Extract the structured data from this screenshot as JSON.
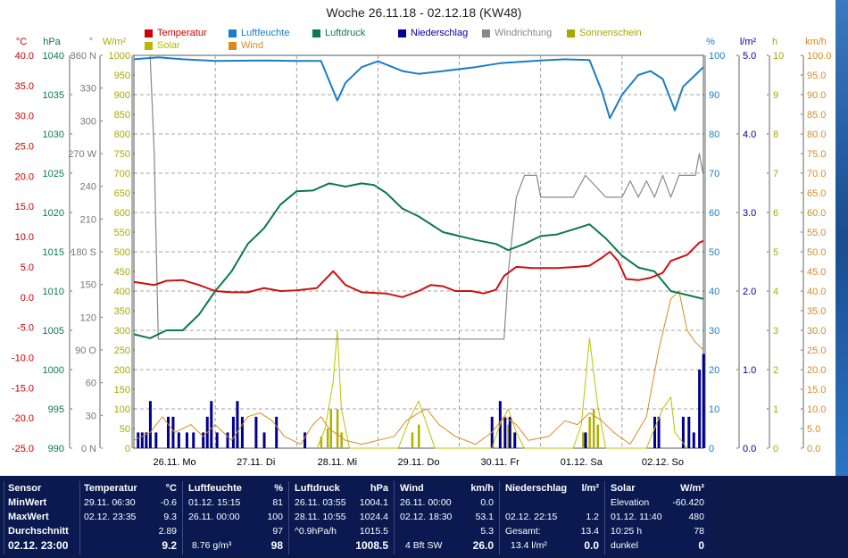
{
  "title": "Woche 26.11.18 - 02.12.18 (KW48)",
  "legend": [
    {
      "label": "Temperatur",
      "color": "#cc0000"
    },
    {
      "label": "Luftfeuchte",
      "color": "#1a7ec4"
    },
    {
      "label": "Luftdruck",
      "color": "#0a7a4a"
    },
    {
      "label": "Niederschlag",
      "color": "#000099"
    },
    {
      "label": "Windrichtung",
      "color": "#888888"
    },
    {
      "label": "Sonnenschein",
      "color": "#a8a800"
    },
    {
      "label": "Solar",
      "color": "#b8b800"
    },
    {
      "label": "Wind",
      "color": "#d88a20"
    }
  ],
  "axis_units": {
    "temp": "°C",
    "hpa": "hPa",
    "dir": "°",
    "solar": "W/m²",
    "hum": "%",
    "rain": "l/m²",
    "sun": "h",
    "wind": "km/h"
  },
  "axis_ticks": {
    "temp": [
      "40.0",
      "35.0",
      "30.0",
      "25.0",
      "20.0",
      "15.0",
      "10.0",
      "5.0",
      "0.0",
      "-5.0",
      "-10.0",
      "-15.0",
      "-20.0",
      "-25.0"
    ],
    "hpa": [
      "1040",
      "1035",
      "1030",
      "1025",
      "1020",
      "1015",
      "1010",
      "1005",
      "1000",
      "995",
      "990"
    ],
    "dir": [
      "360 N",
      "330",
      "300",
      "270 W",
      "240",
      "210",
      "180 S",
      "150",
      "120",
      "90 O",
      "60",
      "30",
      "0 N"
    ],
    "solar": [
      "1000",
      "950",
      "900",
      "850",
      "800",
      "750",
      "700",
      "650",
      "600",
      "550",
      "500",
      "450",
      "400",
      "350",
      "300",
      "250",
      "200",
      "150",
      "100",
      "50",
      "0"
    ],
    "hum": [
      "100",
      "90",
      "80",
      "70",
      "60",
      "50",
      "40",
      "30",
      "20",
      "10",
      "0"
    ],
    "rain": [
      "5.0",
      "4.0",
      "3.0",
      "2.0",
      "1.0",
      "0.0"
    ],
    "sun": [
      "10",
      "9",
      "8",
      "7",
      "6",
      "5",
      "4",
      "3",
      "2",
      "1",
      "0"
    ],
    "wind": [
      "100.0",
      "95.0",
      "90.0",
      "85.0",
      "80.0",
      "75.0",
      "70.0",
      "65.0",
      "60.0",
      "55.0",
      "50.0",
      "45.0",
      "40.0",
      "35.0",
      "30.0",
      "25.0",
      "20.0",
      "15.0",
      "10.0",
      "5.0",
      "0.0"
    ]
  },
  "chart_data": {
    "type": "line",
    "title": "Woche 26.11.18 - 02.12.18 (KW48)",
    "x_day_labels": [
      "26.11. Mo",
      "27.11. Di",
      "28.11. Mi",
      "29.11. Do",
      "30.11. Fr",
      "01.12. Sa",
      "02.12. So"
    ],
    "x_range_days": [
      0,
      7
    ],
    "series": [
      {
        "name": "Temperatur",
        "axis": "temp",
        "ylim": [
          -25,
          40
        ],
        "points": [
          [
            0,
            2.5
          ],
          [
            0.25,
            2
          ],
          [
            0.4,
            2.7
          ],
          [
            0.6,
            2.8
          ],
          [
            0.8,
            2
          ],
          [
            1,
            1
          ],
          [
            1.2,
            0.8
          ],
          [
            1.4,
            0.8
          ],
          [
            1.6,
            1.5
          ],
          [
            1.8,
            1
          ],
          [
            2,
            1.1
          ],
          [
            2.25,
            1.5
          ],
          [
            2.45,
            4.3
          ],
          [
            2.6,
            2
          ],
          [
            2.8,
            0.8
          ],
          [
            3.1,
            0.6
          ],
          [
            3.3,
            0
          ],
          [
            3.5,
            1
          ],
          [
            3.65,
            2
          ],
          [
            3.8,
            1.8
          ],
          [
            3.95,
            1
          ],
          [
            4.15,
            1
          ],
          [
            4.3,
            0.6
          ],
          [
            4.45,
            1.2
          ],
          [
            4.55,
            3.5
          ],
          [
            4.7,
            5
          ],
          [
            4.9,
            4.8
          ],
          [
            5.2,
            4.8
          ],
          [
            5.45,
            5
          ],
          [
            5.6,
            5.2
          ],
          [
            5.75,
            6.5
          ],
          [
            5.85,
            7.5
          ],
          [
            5.95,
            6
          ],
          [
            6.05,
            3
          ],
          [
            6.2,
            2.8
          ],
          [
            6.35,
            3.2
          ],
          [
            6.5,
            4
          ],
          [
            6.6,
            6
          ],
          [
            6.8,
            7
          ],
          [
            6.95,
            9
          ],
          [
            7,
            9.3
          ]
        ]
      },
      {
        "name": "Luftfeuchte",
        "axis": "hum",
        "ylim": [
          0,
          100
        ],
        "points": [
          [
            0,
            99
          ],
          [
            0.3,
            99.5
          ],
          [
            0.6,
            99
          ],
          [
            1,
            98.6
          ],
          [
            1.6,
            98.7
          ],
          [
            2,
            98.6
          ],
          [
            2.3,
            98.6
          ],
          [
            2.5,
            88.5
          ],
          [
            2.6,
            93
          ],
          [
            2.8,
            97
          ],
          [
            3,
            98.5
          ],
          [
            3.3,
            96
          ],
          [
            3.5,
            95.3
          ],
          [
            3.8,
            96
          ],
          [
            4.2,
            97
          ],
          [
            4.5,
            98
          ],
          [
            5,
            98.7
          ],
          [
            5.3,
            99
          ],
          [
            5.6,
            98.8
          ],
          [
            5.75,
            91
          ],
          [
            5.85,
            84
          ],
          [
            6,
            90
          ],
          [
            6.2,
            95
          ],
          [
            6.35,
            96
          ],
          [
            6.5,
            94
          ],
          [
            6.65,
            86
          ],
          [
            6.75,
            92
          ],
          [
            6.9,
            95
          ],
          [
            7,
            97
          ]
        ]
      },
      {
        "name": "Luftdruck",
        "axis": "hpa",
        "ylim": [
          990,
          1040
        ],
        "points": [
          [
            0,
            1004.5
          ],
          [
            0.2,
            1004
          ],
          [
            0.4,
            1005
          ],
          [
            0.6,
            1005
          ],
          [
            0.8,
            1007
          ],
          [
            1,
            1010
          ],
          [
            1.2,
            1012.5
          ],
          [
            1.4,
            1016
          ],
          [
            1.6,
            1018
          ],
          [
            1.8,
            1021
          ],
          [
            2,
            1022.7
          ],
          [
            2.2,
            1022.8
          ],
          [
            2.4,
            1023.7
          ],
          [
            2.6,
            1023.3
          ],
          [
            2.8,
            1023.7
          ],
          [
            2.95,
            1023.5
          ],
          [
            3.1,
            1022.5
          ],
          [
            3.3,
            1020.5
          ],
          [
            3.5,
            1019.5
          ],
          [
            3.8,
            1017.5
          ],
          [
            4.2,
            1016.5
          ],
          [
            4.45,
            1016
          ],
          [
            4.6,
            1015.2
          ],
          [
            4.8,
            1016
          ],
          [
            5,
            1017
          ],
          [
            5.2,
            1017.2
          ],
          [
            5.45,
            1018
          ],
          [
            5.6,
            1018.5
          ],
          [
            5.8,
            1016.7
          ],
          [
            6,
            1014.5
          ],
          [
            6.2,
            1013
          ],
          [
            6.4,
            1012.5
          ],
          [
            6.6,
            1010
          ],
          [
            6.8,
            1009.5
          ],
          [
            7,
            1009
          ]
        ]
      },
      {
        "name": "Windrichtung",
        "axis": "dir",
        "ylim": [
          0,
          360
        ],
        "points": [
          [
            0,
            360
          ],
          [
            0.2,
            360
          ],
          [
            0.25,
            270
          ],
          [
            0.3,
            100
          ],
          [
            0.55,
            100
          ],
          [
            0.6,
            100
          ],
          [
            4.55,
            100
          ],
          [
            4.6,
            160
          ],
          [
            4.7,
            230
          ],
          [
            4.8,
            250
          ],
          [
            4.95,
            250
          ],
          [
            5,
            230
          ],
          [
            5.4,
            230
          ],
          [
            5.55,
            250
          ],
          [
            5.8,
            230
          ],
          [
            6,
            230
          ],
          [
            6.1,
            245
          ],
          [
            6.2,
            230
          ],
          [
            6.3,
            245
          ],
          [
            6.4,
            230
          ],
          [
            6.5,
            250
          ],
          [
            6.6,
            230
          ],
          [
            6.7,
            250
          ],
          [
            6.9,
            250
          ],
          [
            6.95,
            270
          ],
          [
            7,
            250
          ]
        ]
      },
      {
        "name": "Solar",
        "axis": "solar",
        "ylim": [
          0,
          1000
        ],
        "points": [
          [
            2.25,
            0
          ],
          [
            2.35,
            50
          ],
          [
            2.45,
            170
          ],
          [
            2.5,
            300
          ],
          [
            2.55,
            100
          ],
          [
            2.65,
            0
          ],
          [
            3.25,
            0
          ],
          [
            3.4,
            80
          ],
          [
            3.5,
            120
          ],
          [
            3.6,
            60
          ],
          [
            3.7,
            0
          ],
          [
            4.4,
            0
          ],
          [
            4.5,
            60
          ],
          [
            4.6,
            100
          ],
          [
            4.7,
            40
          ],
          [
            4.8,
            0
          ],
          [
            5.4,
            0
          ],
          [
            5.5,
            60
          ],
          [
            5.6,
            280
          ],
          [
            5.7,
            110
          ],
          [
            5.8,
            0
          ],
          [
            6.3,
            0
          ],
          [
            6.5,
            100
          ],
          [
            6.6,
            130
          ],
          [
            6.65,
            40
          ],
          [
            6.8,
            0
          ]
        ]
      },
      {
        "name": "Wind",
        "axis": "wind",
        "ylim": [
          0,
          100
        ],
        "points": [
          [
            0,
            2
          ],
          [
            0.2,
            4
          ],
          [
            0.35,
            8
          ],
          [
            0.5,
            4
          ],
          [
            0.7,
            6
          ],
          [
            0.85,
            3
          ],
          [
            1,
            6
          ],
          [
            1.2,
            2
          ],
          [
            1.4,
            8
          ],
          [
            1.55,
            9
          ],
          [
            1.7,
            7
          ],
          [
            1.85,
            3
          ],
          [
            2.05,
            1
          ],
          [
            2.2,
            6
          ],
          [
            2.3,
            8
          ],
          [
            2.4,
            5
          ],
          [
            2.6,
            2
          ],
          [
            2.8,
            1
          ],
          [
            3.2,
            3
          ],
          [
            3.35,
            7
          ],
          [
            3.5,
            9
          ],
          [
            3.6,
            10
          ],
          [
            3.75,
            6
          ],
          [
            3.95,
            3
          ],
          [
            4.2,
            1
          ],
          [
            4.4,
            4
          ],
          [
            4.55,
            8
          ],
          [
            4.7,
            6
          ],
          [
            4.85,
            2
          ],
          [
            5.1,
            3
          ],
          [
            5.3,
            7
          ],
          [
            5.45,
            6
          ],
          [
            5.6,
            9
          ],
          [
            5.75,
            7
          ],
          [
            5.9,
            4
          ],
          [
            6.1,
            1
          ],
          [
            6.3,
            8
          ],
          [
            6.45,
            25
          ],
          [
            6.6,
            38
          ],
          [
            6.7,
            40
          ],
          [
            6.8,
            30
          ],
          [
            6.9,
            27
          ],
          [
            7,
            25
          ]
        ]
      }
    ],
    "niederschlag_bars": {
      "axis": "rain",
      "ylim": [
        0,
        5
      ],
      "bars": [
        [
          0.05,
          0.2
        ],
        [
          0.1,
          0.2
        ],
        [
          0.15,
          0.2
        ],
        [
          0.2,
          0.6
        ],
        [
          0.27,
          0.2
        ],
        [
          0.42,
          0.4
        ],
        [
          0.48,
          0.4
        ],
        [
          0.55,
          0.2
        ],
        [
          0.65,
          0.2
        ],
        [
          0.73,
          0.2
        ],
        [
          0.85,
          0.2
        ],
        [
          0.9,
          0.4
        ],
        [
          0.95,
          0.6
        ],
        [
          1.02,
          0.2
        ],
        [
          1.15,
          0.2
        ],
        [
          1.22,
          0.4
        ],
        [
          1.27,
          0.6
        ],
        [
          1.33,
          0.4
        ],
        [
          1.5,
          0.4
        ],
        [
          1.6,
          0.2
        ],
        [
          1.75,
          0.4
        ],
        [
          2.1,
          0.2
        ],
        [
          4.4,
          0.4
        ],
        [
          4.5,
          0.6
        ],
        [
          4.56,
          0.4
        ],
        [
          4.62,
          0.4
        ],
        [
          4.68,
          0.2
        ],
        [
          5.55,
          0.2
        ],
        [
          6.4,
          0.4
        ],
        [
          6.45,
          0.4
        ],
        [
          6.75,
          0.4
        ],
        [
          6.82,
          0.4
        ],
        [
          6.88,
          0.2
        ],
        [
          6.95,
          1.0
        ],
        [
          7.0,
          1.2
        ]
      ]
    },
    "sonnenschein_bars": {
      "axis": "sun",
      "ylim": [
        0,
        10
      ],
      "bars": [
        [
          2.3,
          0.3
        ],
        [
          2.38,
          0.5
        ],
        [
          2.42,
          1
        ],
        [
          2.5,
          1
        ],
        [
          2.55,
          0.4
        ],
        [
          3.42,
          0.4
        ],
        [
          3.5,
          0.6
        ],
        [
          4.5,
          0.5
        ],
        [
          4.6,
          0.6
        ],
        [
          5.52,
          0.4
        ],
        [
          5.6,
          0.8
        ],
        [
          5.65,
          1
        ],
        [
          5.7,
          0.6
        ]
      ]
    }
  },
  "panel": {
    "sensor": {
      "head": "Sensor",
      "min": "MinWert",
      "max": "MaxWert",
      "avg": "Durchschnitt",
      "now": "02.12. 23:00"
    },
    "temperatur": {
      "head": "Temperatur",
      "unit": "°C",
      "min_t": "29.11.  06:30",
      "min_v": "-0.6",
      "max_t": "02.12.  23:35",
      "max_v": "9.3",
      "avg_v": "2.89",
      "now_v": "9.2"
    },
    "luftfeuchte": {
      "head": "Luftfeuchte",
      "unit": "%",
      "min_t": "01.12.  15:15",
      "min_v": "81",
      "max_t": "26.11.  00:00",
      "max_v": "100",
      "avg_v": "97",
      "now_t": "8.76 g/m³",
      "now_v": "98"
    },
    "luftdruck": {
      "head": "Luftdruck",
      "unit": "hPa",
      "min_t": "26.11.  03:55",
      "min_v": "1004.1",
      "max_t": "28.11.  10:55",
      "max_v": "1024.4",
      "avg_t": "^0.9hPa/h",
      "avg_v": "1015.5",
      "now_v": "1008.5"
    },
    "wind": {
      "head": "Wind",
      "unit": "km/h",
      "min_t": "26.11.  00:00",
      "min_v": "0.0",
      "max_t": "02.12.  18:30",
      "max_v": "53.1",
      "avg_v": "5.3",
      "now_t": "4 Bft SW",
      "now_v": "26.0"
    },
    "niederschlag": {
      "head": "Niederschlag",
      "unit": "l/m²",
      "max_t": "02.12.  22:15",
      "max_v": "1.2",
      "avg_t": "Gesamt:",
      "avg_v": "13.4",
      "now_t": "13.4 l/m²",
      "now_v": "0.0"
    },
    "solar": {
      "head": "Solar",
      "unit": "W/m²",
      "min_t": "Elevation",
      "min_v": "-60.420",
      "max_t": "01.12.  11:40",
      "max_v": "480",
      "avg_t": "10:25 h",
      "avg_v": "78",
      "now_t": "dunkel",
      "now_v": "0"
    }
  }
}
